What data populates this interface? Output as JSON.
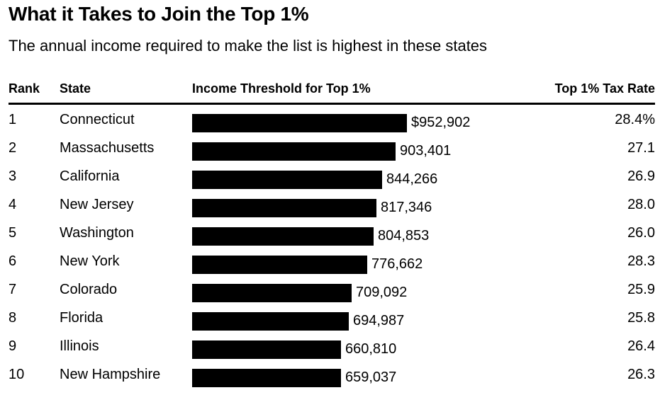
{
  "header": {
    "title": "What it Takes to Join the Top 1%",
    "subtitle": "The annual income required to make the list is highest in these states"
  },
  "columns": {
    "rank": "Rank",
    "state": "State",
    "threshold": "Income Threshold for Top 1%",
    "tax_rate": "Top 1% Tax Rate"
  },
  "chart_data": {
    "type": "table",
    "title": "What it Takes to Join the Top 1%",
    "subtitle": "The annual income required to make the list is highest in these states",
    "columns": [
      "Rank",
      "State",
      "Income Threshold for Top 1%",
      "Top 1% Tax Rate"
    ],
    "rows": [
      {
        "rank": "1",
        "state": "Connecticut",
        "threshold": 952902,
        "threshold_label": "$952,902",
        "tax_rate": "28.4%"
      },
      {
        "rank": "2",
        "state": "Massachusetts",
        "threshold": 903401,
        "threshold_label": "903,401",
        "tax_rate": "27.1"
      },
      {
        "rank": "3",
        "state": "California",
        "threshold": 844266,
        "threshold_label": "844,266",
        "tax_rate": "26.9"
      },
      {
        "rank": "4",
        "state": "New Jersey",
        "threshold": 817346,
        "threshold_label": "817,346",
        "tax_rate": "28.0"
      },
      {
        "rank": "5",
        "state": "Washington",
        "threshold": 804853,
        "threshold_label": "804,853",
        "tax_rate": "26.0"
      },
      {
        "rank": "6",
        "state": "New York",
        "threshold": 776662,
        "threshold_label": "776,662",
        "tax_rate": "28.3"
      },
      {
        "rank": "7",
        "state": "Colorado",
        "threshold": 709092,
        "threshold_label": "709,092",
        "tax_rate": "25.9"
      },
      {
        "rank": "8",
        "state": "Florida",
        "threshold": 694987,
        "threshold_label": "694,987",
        "tax_rate": "25.8"
      },
      {
        "rank": "9",
        "state": "Illinois",
        "threshold": 660810,
        "threshold_label": "660,810",
        "tax_rate": "26.4"
      },
      {
        "rank": "10",
        "state": "New Hampshire",
        "threshold": 659037,
        "threshold_label": "659,037",
        "tax_rate": "26.3"
      }
    ],
    "bar_color": "#000000"
  }
}
